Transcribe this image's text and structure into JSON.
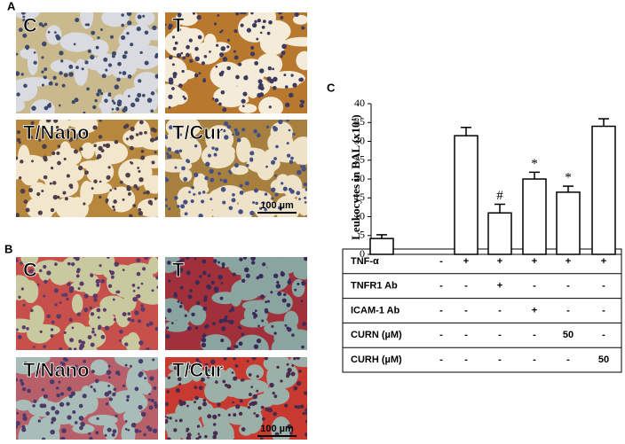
{
  "panel_a": {
    "label": "A",
    "images": [
      "C",
      "T",
      "T/Nano",
      "T/Cur"
    ],
    "scale_bar": "100 µm"
  },
  "panel_b": {
    "label": "B",
    "images": [
      "C",
      "T",
      "T/Nano",
      "T/Cur"
    ],
    "scale_bar": "100 µm"
  },
  "chart_data": {
    "type": "bar",
    "panel_label": "C",
    "y_label": "Leukocytes in BAL (x10⁴)",
    "categories": [
      null,
      null,
      null,
      null,
      null,
      null
    ],
    "values": [
      4.2,
      31.5,
      11,
      20,
      16.5,
      34
    ],
    "errors": [
      1,
      2.2,
      2.3,
      1.8,
      1.6,
      2
    ],
    "annotations": [
      null,
      null,
      "#",
      "*",
      "*",
      null
    ],
    "color": "#ffffff",
    "ylim": [
      0,
      40
    ],
    "yticks": [
      0,
      5,
      10,
      15,
      20,
      25,
      30,
      35,
      40
    ],
    "grid": false
  },
  "table": {
    "rows": [
      [
        "TNF-α",
        "-",
        "+",
        "+",
        "+",
        "+",
        "+"
      ],
      [
        "TNFR1 Ab",
        "-",
        "-",
        "+",
        "-",
        "-",
        "-"
      ],
      [
        "ICAM-1 Ab",
        "-",
        "-",
        "-",
        "+",
        "-",
        "-"
      ],
      [
        "CURN (µM)",
        "-",
        "-",
        "-",
        "-",
        "50",
        "-"
      ],
      [
        "CURH (µM)",
        "-",
        "-",
        "-",
        "-",
        "-",
        "50"
      ]
    ]
  }
}
